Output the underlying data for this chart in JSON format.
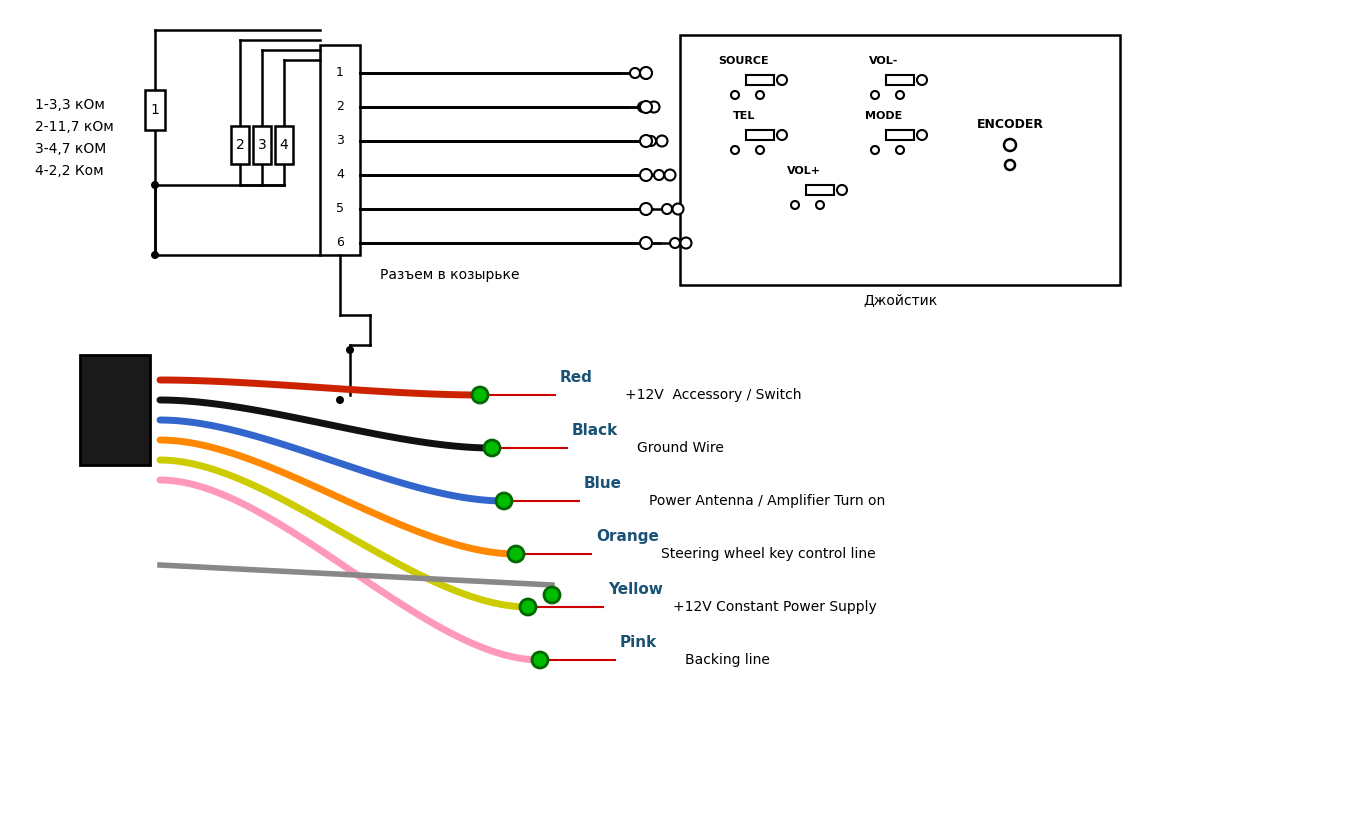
{
  "bg_color": "#ffffff",
  "title": "",
  "resistor_labels": [
    "1-3,3 кОм",
    "2-11,7 кОм",
    "3-4,7 кОМ",
    "4-2,2 Ком"
  ],
  "connector_pins": [
    "1",
    "2",
    "3",
    "4",
    "5",
    "6"
  ],
  "joystick_buttons": [
    "SOURCE",
    "VOL-",
    "TEL",
    "MODE",
    "VOL+",
    "ENCODER"
  ],
  "wire_colors": [
    "#cc0000",
    "#222222",
    "#1e4db3",
    "#ff8c00",
    "#cccc00",
    "#ff80c0"
  ],
  "wire_labels": [
    "Red",
    "Black",
    "Blue",
    "Orange",
    "Yellow",
    "Pink"
  ],
  "wire_descriptions": [
    "+12V  Accessory / Switch",
    "Ground Wire",
    "Power Antenna / Amplifier Turn on",
    "Steering wheel key control line",
    "+12V Constant Power Supply",
    "Backing line"
  ],
  "label_color_blue": "#1a5276",
  "label_color_red": "#cc0000"
}
